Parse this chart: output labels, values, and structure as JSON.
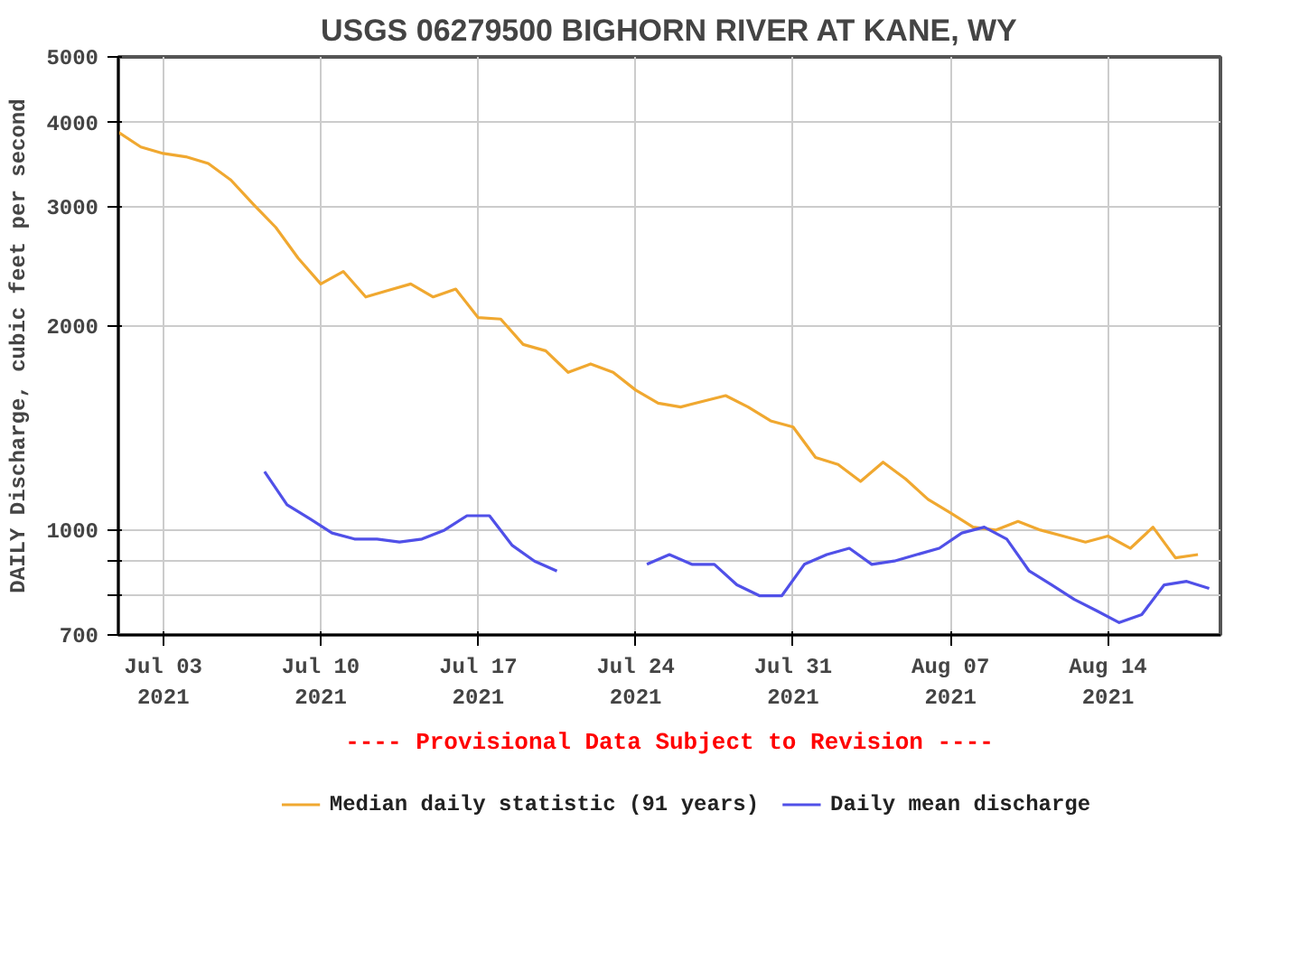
{
  "chart_data": {
    "type": "line",
    "title": "USGS 06279500 BIGHORN RIVER AT KANE, WY",
    "ylabel": "DAILY Discharge, cubic feet per second",
    "annotations": [
      "---- Provisional Data Subject to Revision ----"
    ],
    "log": true,
    "grid": true,
    "legend": "bottom",
    "marker": "none",
    "line_style": "solid",
    "xlim": [
      "2021-07-01",
      "2021-08-19"
    ],
    "xticks": [
      {
        "value": "2021-07-03",
        "label": "Jul 03\n2021"
      },
      {
        "value": "2021-07-10",
        "label": "Jul 10\n2021"
      },
      {
        "value": "2021-07-17",
        "label": "Jul 17\n2021"
      },
      {
        "value": "2021-07-24",
        "label": "Jul 24\n2021"
      },
      {
        "value": "2021-07-31",
        "label": "Jul 31\n2021"
      },
      {
        "value": "2021-08-07",
        "label": "Aug 07\n2021"
      },
      {
        "value": "2021-08-14",
        "label": "Aug 14\n2021"
      }
    ],
    "ylim": [
      700,
      5000
    ],
    "yticks": [
      700,
      {
        "value": 800,
        "label": null
      },
      {
        "value": 900,
        "label": null
      },
      1000,
      2000,
      3000,
      4000,
      5000
    ],
    "series": [
      {
        "name": "Median daily statistic (91 years)",
        "color": "#f0a830",
        "x": [
          "2021-07-01",
          "2021-07-02",
          "2021-07-03",
          "2021-07-04",
          "2021-07-05",
          "2021-07-06",
          "2021-07-07",
          "2021-07-08",
          "2021-07-09",
          "2021-07-10",
          "2021-07-11",
          "2021-07-12",
          "2021-07-13",
          "2021-07-14",
          "2021-07-15",
          "2021-07-16",
          "2021-07-17",
          "2021-07-18",
          "2021-07-19",
          "2021-07-20",
          "2021-07-21",
          "2021-07-22",
          "2021-07-23",
          "2021-07-24",
          "2021-07-25",
          "2021-07-26",
          "2021-07-27",
          "2021-07-28",
          "2021-07-29",
          "2021-07-30",
          "2021-07-31",
          "2021-08-01",
          "2021-08-02",
          "2021-08-03",
          "2021-08-04",
          "2021-08-05",
          "2021-08-06",
          "2021-08-07",
          "2021-08-08",
          "2021-08-09",
          "2021-08-10",
          "2021-08-11",
          "2021-08-12",
          "2021-08-13",
          "2021-08-14",
          "2021-08-15",
          "2021-08-16",
          "2021-08-17",
          "2021-08-18"
        ],
        "values": [
          3870,
          3680,
          3600,
          3560,
          3480,
          3290,
          3030,
          2800,
          2520,
          2310,
          2410,
          2210,
          2260,
          2310,
          2210,
          2270,
          2060,
          2050,
          1880,
          1840,
          1710,
          1760,
          1710,
          1610,
          1540,
          1520,
          1550,
          1580,
          1520,
          1450,
          1420,
          1280,
          1250,
          1180,
          1260,
          1190,
          1110,
          1060,
          1010,
          1000,
          1030,
          1000,
          980,
          960,
          980,
          940,
          1010,
          910,
          920
        ]
      },
      {
        "name": "Daily mean discharge",
        "color": "#5050e8",
        "x": [
          "2021-07-07T12:00",
          "2021-07-08T12:00",
          "2021-07-09T12:00",
          "2021-07-10T12:00",
          "2021-07-11T12:00",
          "2021-07-12T12:00",
          "2021-07-13T12:00",
          "2021-07-14T12:00",
          "2021-07-15T12:00",
          "2021-07-16T12:00",
          "2021-07-17T12:00",
          "2021-07-18T12:00",
          "2021-07-19T12:00",
          "2021-07-20T12:00",
          "2021-07-22T12:00",
          "2021-07-24T12:00",
          "2021-07-25T12:00",
          "2021-07-26T12:00",
          "2021-07-27T12:00",
          "2021-07-28T12:00",
          "2021-07-29T12:00",
          "2021-07-30T12:00",
          "2021-07-31T12:00",
          "2021-08-01T12:00",
          "2021-08-02T12:00",
          "2021-08-03T12:00",
          "2021-08-04T12:00",
          "2021-08-05T12:00",
          "2021-08-06T12:00",
          "2021-08-07T12:00",
          "2021-08-08T12:00",
          "2021-08-09T12:00",
          "2021-08-10T12:00",
          "2021-08-11T12:00",
          "2021-08-12T12:00",
          "2021-08-13T12:00",
          "2021-08-14T12:00",
          "2021-08-15T12:00",
          "2021-08-16T12:00",
          "2021-08-17T12:00",
          "2021-08-18T12:00"
        ],
        "values": [
          1220,
          1090,
          1040,
          990,
          970,
          970,
          960,
          970,
          1000,
          1050,
          1050,
          950,
          900,
          870,
          null,
          890,
          920,
          890,
          890,
          830,
          800,
          800,
          890,
          920,
          940,
          890,
          900,
          920,
          940,
          990,
          1010,
          970,
          870,
          830,
          790,
          760,
          730,
          750,
          830,
          840,
          820
        ]
      }
    ]
  }
}
